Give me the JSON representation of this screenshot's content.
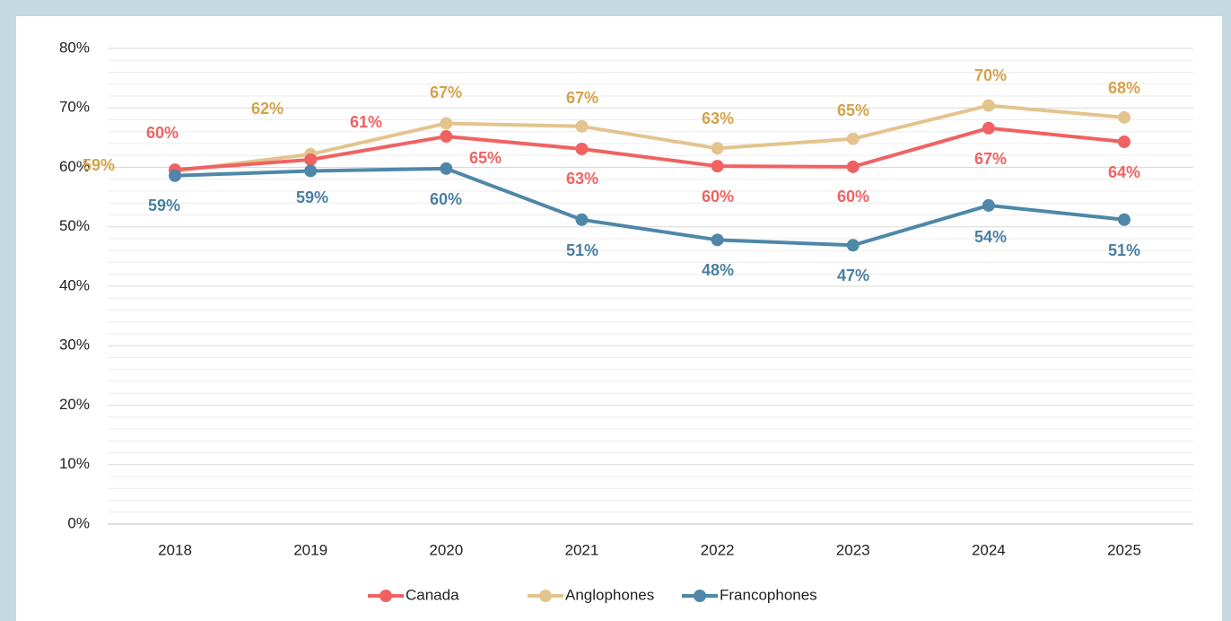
{
  "chart_data": {
    "type": "line",
    "categories": [
      "2018",
      "2019",
      "2020",
      "2021",
      "2022",
      "2023",
      "2024",
      "2025"
    ],
    "series": [
      {
        "name": "Canada",
        "color": "#f06262",
        "label_color": "#f06262",
        "values": [
          59.6,
          61.3,
          65.2,
          63.1,
          60.2,
          60.1,
          66.6,
          64.3
        ],
        "value_labels": [
          "60%",
          "61%",
          "65%",
          "63%",
          "60%",
          "60%",
          "67%",
          "64%"
        ]
      },
      {
        "name": "Anglophones",
        "color": "#e3c48e",
        "label_color": "#d4a24a",
        "values": [
          59.4,
          62.2,
          67.4,
          66.9,
          63.2,
          64.8,
          70.4,
          68.4
        ],
        "value_labels": [
          "59%",
          "62%",
          "67%",
          "67%",
          "63%",
          "65%",
          "70%",
          "68%"
        ]
      },
      {
        "name": "Francophones",
        "color": "#4e87a8",
        "label_color": "#4a7fa0",
        "values": [
          58.6,
          59.4,
          59.8,
          51.2,
          47.8,
          46.9,
          53.6,
          51.2
        ],
        "value_labels": [
          "59%",
          "59%",
          "60%",
          "51%",
          "48%",
          "47%",
          "54%",
          "51%"
        ]
      }
    ],
    "ylim": [
      0,
      80
    ],
    "yticks": [
      {
        "value": 0,
        "label": "0%"
      },
      {
        "value": 10,
        "label": "10%"
      },
      {
        "value": 20,
        "label": "20%"
      },
      {
        "value": 30,
        "label": "30%"
      },
      {
        "value": 40,
        "label": "40%"
      },
      {
        "value": 50,
        "label": "50%"
      },
      {
        "value": 60,
        "label": "60%"
      },
      {
        "value": 70,
        "label": "70%"
      },
      {
        "value": 80,
        "label": "80%"
      }
    ],
    "minor_yticks": [
      2,
      4,
      6,
      8,
      12,
      14,
      16,
      18,
      22,
      24,
      26,
      28,
      32,
      34,
      36,
      38,
      42,
      44,
      46,
      48,
      52,
      54,
      56,
      58,
      62,
      64,
      66,
      68,
      72,
      74,
      76,
      78
    ],
    "grid": true,
    "legend": "bottom"
  }
}
